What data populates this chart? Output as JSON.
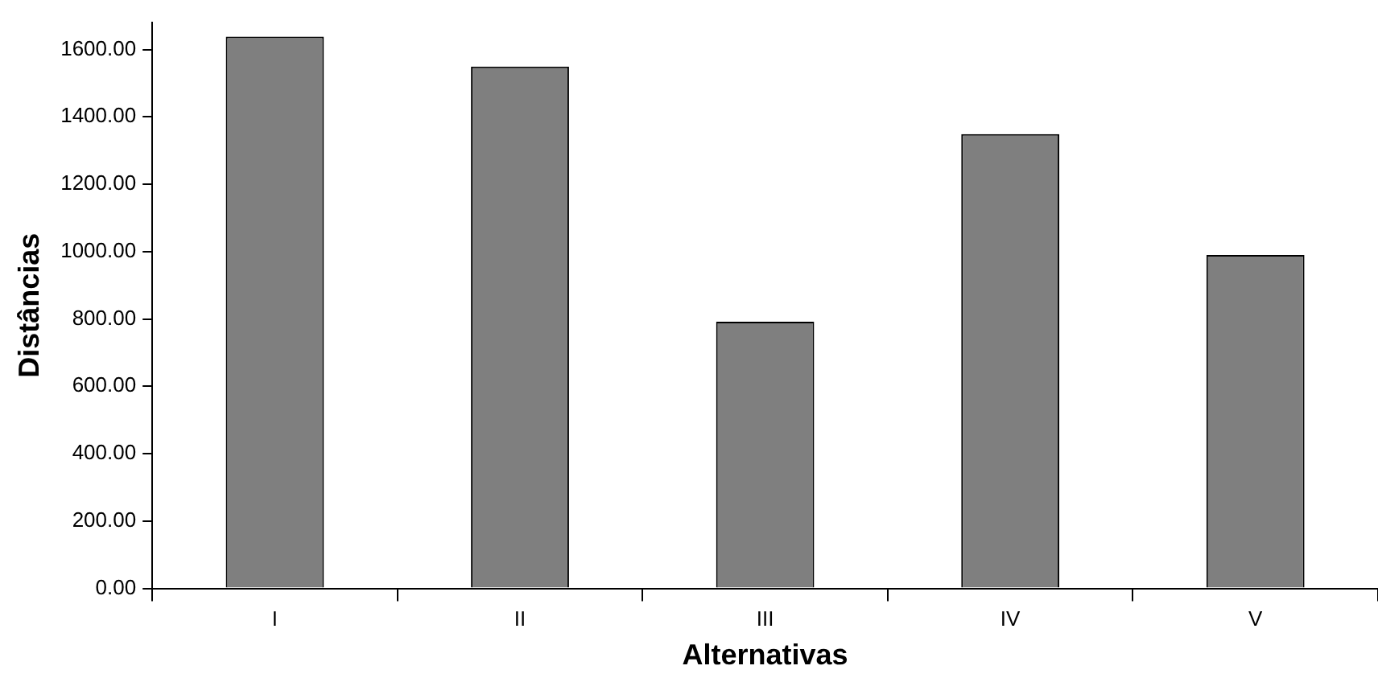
{
  "chart_data": {
    "type": "bar",
    "xlabel": "Alternativas",
    "ylabel": "Distâncias",
    "categories": [
      "I",
      "II",
      "III",
      "IV",
      "V"
    ],
    "values": [
      1638,
      1549,
      792,
      1349,
      990
    ],
    "color": "#7f7f7f",
    "ylim": [
      0,
      1680
    ],
    "yticks": [
      {
        "value": 0,
        "label": "0.00"
      },
      {
        "value": 200,
        "label": "200.00"
      },
      {
        "value": 400,
        "label": "400.00"
      },
      {
        "value": 600,
        "label": "600.00"
      },
      {
        "value": 800,
        "label": "800.00"
      },
      {
        "value": 1000,
        "label": "1000.00"
      },
      {
        "value": 1200,
        "label": "1200.00"
      },
      {
        "value": 1400,
        "label": "1400.00"
      },
      {
        "value": 1600,
        "label": "1600.00"
      }
    ],
    "grid": false,
    "legend": false
  }
}
